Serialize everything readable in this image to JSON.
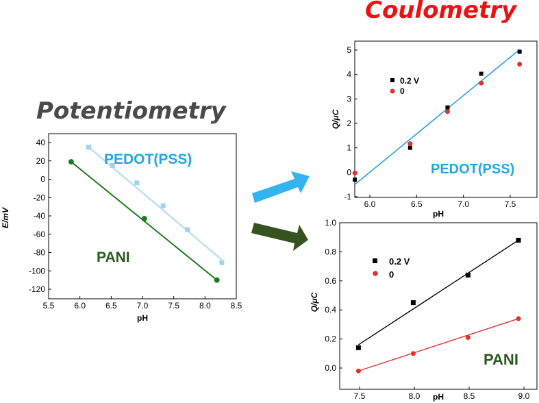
{
  "headings": {
    "left": "Potentiometry",
    "right": "Coulometry"
  },
  "colors": {
    "heading_left": "#4a4a4a",
    "heading_right": "#ee1111",
    "pedot_light": "#9fd3ee",
    "pedot_line": "#b8e2f5",
    "pani_green": "#1f7a1f",
    "pani_label": "#2b5a1e",
    "coul_line_blue": "#2a9fe0",
    "label_blue": "#22a7e6",
    "black": "#000000",
    "red": "#e53030",
    "arrow_blue": "#33b4ee",
    "arrow_green": "#35521f"
  },
  "chart_data": [
    {
      "id": "potentiometry",
      "type": "scatter",
      "xlabel": "pH",
      "ylabel": "E/mV",
      "xlim": [
        5.5,
        8.5
      ],
      "ylim": [
        -130,
        50
      ],
      "xticks": [
        "5.5",
        "6.0",
        "6.5",
        "7.0",
        "7.5",
        "8.0",
        "8.5"
      ],
      "yticks": [
        "40",
        "20",
        "0",
        "-20",
        "-40",
        "-60",
        "-80",
        "-100",
        "-120"
      ],
      "annotations": [
        "PEDOT(PSS)",
        "PANI"
      ],
      "series": [
        {
          "marker": "square",
          "x": [
            6.14,
            6.52,
            6.91,
            7.33,
            7.72,
            8.27
          ],
          "y": [
            35,
            15,
            -4,
            -29,
            -55,
            -91
          ],
          "fit": [
            [
              6.14,
              35
            ],
            [
              8.27,
              -88
            ]
          ]
        },
        {
          "marker": "circle",
          "x": [
            5.86,
            7.03,
            8.19
          ],
          "y": [
            19,
            -43,
            -110
          ],
          "fit": [
            [
              5.86,
              19
            ],
            [
              8.19,
              -110
            ]
          ]
        }
      ]
    },
    {
      "id": "coulometry-pedot",
      "type": "scatter",
      "xlabel": "pH",
      "ylabel": "Q/μC",
      "xlim": [
        5.65,
        7.75
      ],
      "ylim": [
        -1,
        5.4
      ],
      "xticks": [
        "6.0",
        "6.5",
        "7.0",
        "7.5"
      ],
      "yticks": [
        "5",
        "4",
        "3",
        "2",
        "1",
        "0",
        "-1"
      ],
      "annotations": [
        "PEDOT(PSS)"
      ],
      "legend": [
        "0.2 V",
        "0"
      ],
      "legend_position": "top-left",
      "series": [
        {
          "name": "0.2 V",
          "marker": "square",
          "x": [
            5.84,
            6.43,
            6.83,
            7.19,
            7.6
          ],
          "y": [
            -0.3,
            1.0,
            2.65,
            4.03,
            4.93
          ]
        },
        {
          "name": "0",
          "marker": "circle",
          "x": [
            5.84,
            6.43,
            6.83,
            7.19,
            7.6
          ],
          "y": [
            -0.03,
            1.17,
            2.48,
            3.65,
            4.42
          ]
        }
      ],
      "fit": [
        [
          5.84,
          -0.5
        ],
        [
          7.6,
          5.02
        ]
      ]
    },
    {
      "id": "coulometry-pani",
      "type": "scatter",
      "xlabel": "pH",
      "ylabel": "Q/μC",
      "xlim": [
        7.35,
        9.1
      ],
      "ylim": [
        -0.08,
        1.0
      ],
      "xticks": [
        "7.5",
        "8.0",
        "8.5",
        "9.0"
      ],
      "yticks": [
        "1.0",
        "0.8",
        "0.6",
        "0.4",
        "0.2",
        "0.0"
      ],
      "annotations": [
        "PANI"
      ],
      "legend": [
        "0.2 V",
        "0"
      ],
      "legend_position": "top-left",
      "series": [
        {
          "name": "0.2 V",
          "marker": "square",
          "x": [
            7.49,
            7.99,
            8.49,
            8.95
          ],
          "y": [
            0.14,
            0.45,
            0.64,
            0.88
          ],
          "fit": [
            [
              7.49,
              0.16
            ],
            [
              8.95,
              0.88
            ]
          ]
        },
        {
          "name": "0",
          "marker": "circle",
          "x": [
            7.49,
            7.99,
            8.49,
            8.95
          ],
          "y": [
            -0.02,
            0.1,
            0.21,
            0.34
          ],
          "fit": [
            [
              7.49,
              -0.02
            ],
            [
              8.95,
              0.34
            ]
          ]
        }
      ]
    }
  ]
}
